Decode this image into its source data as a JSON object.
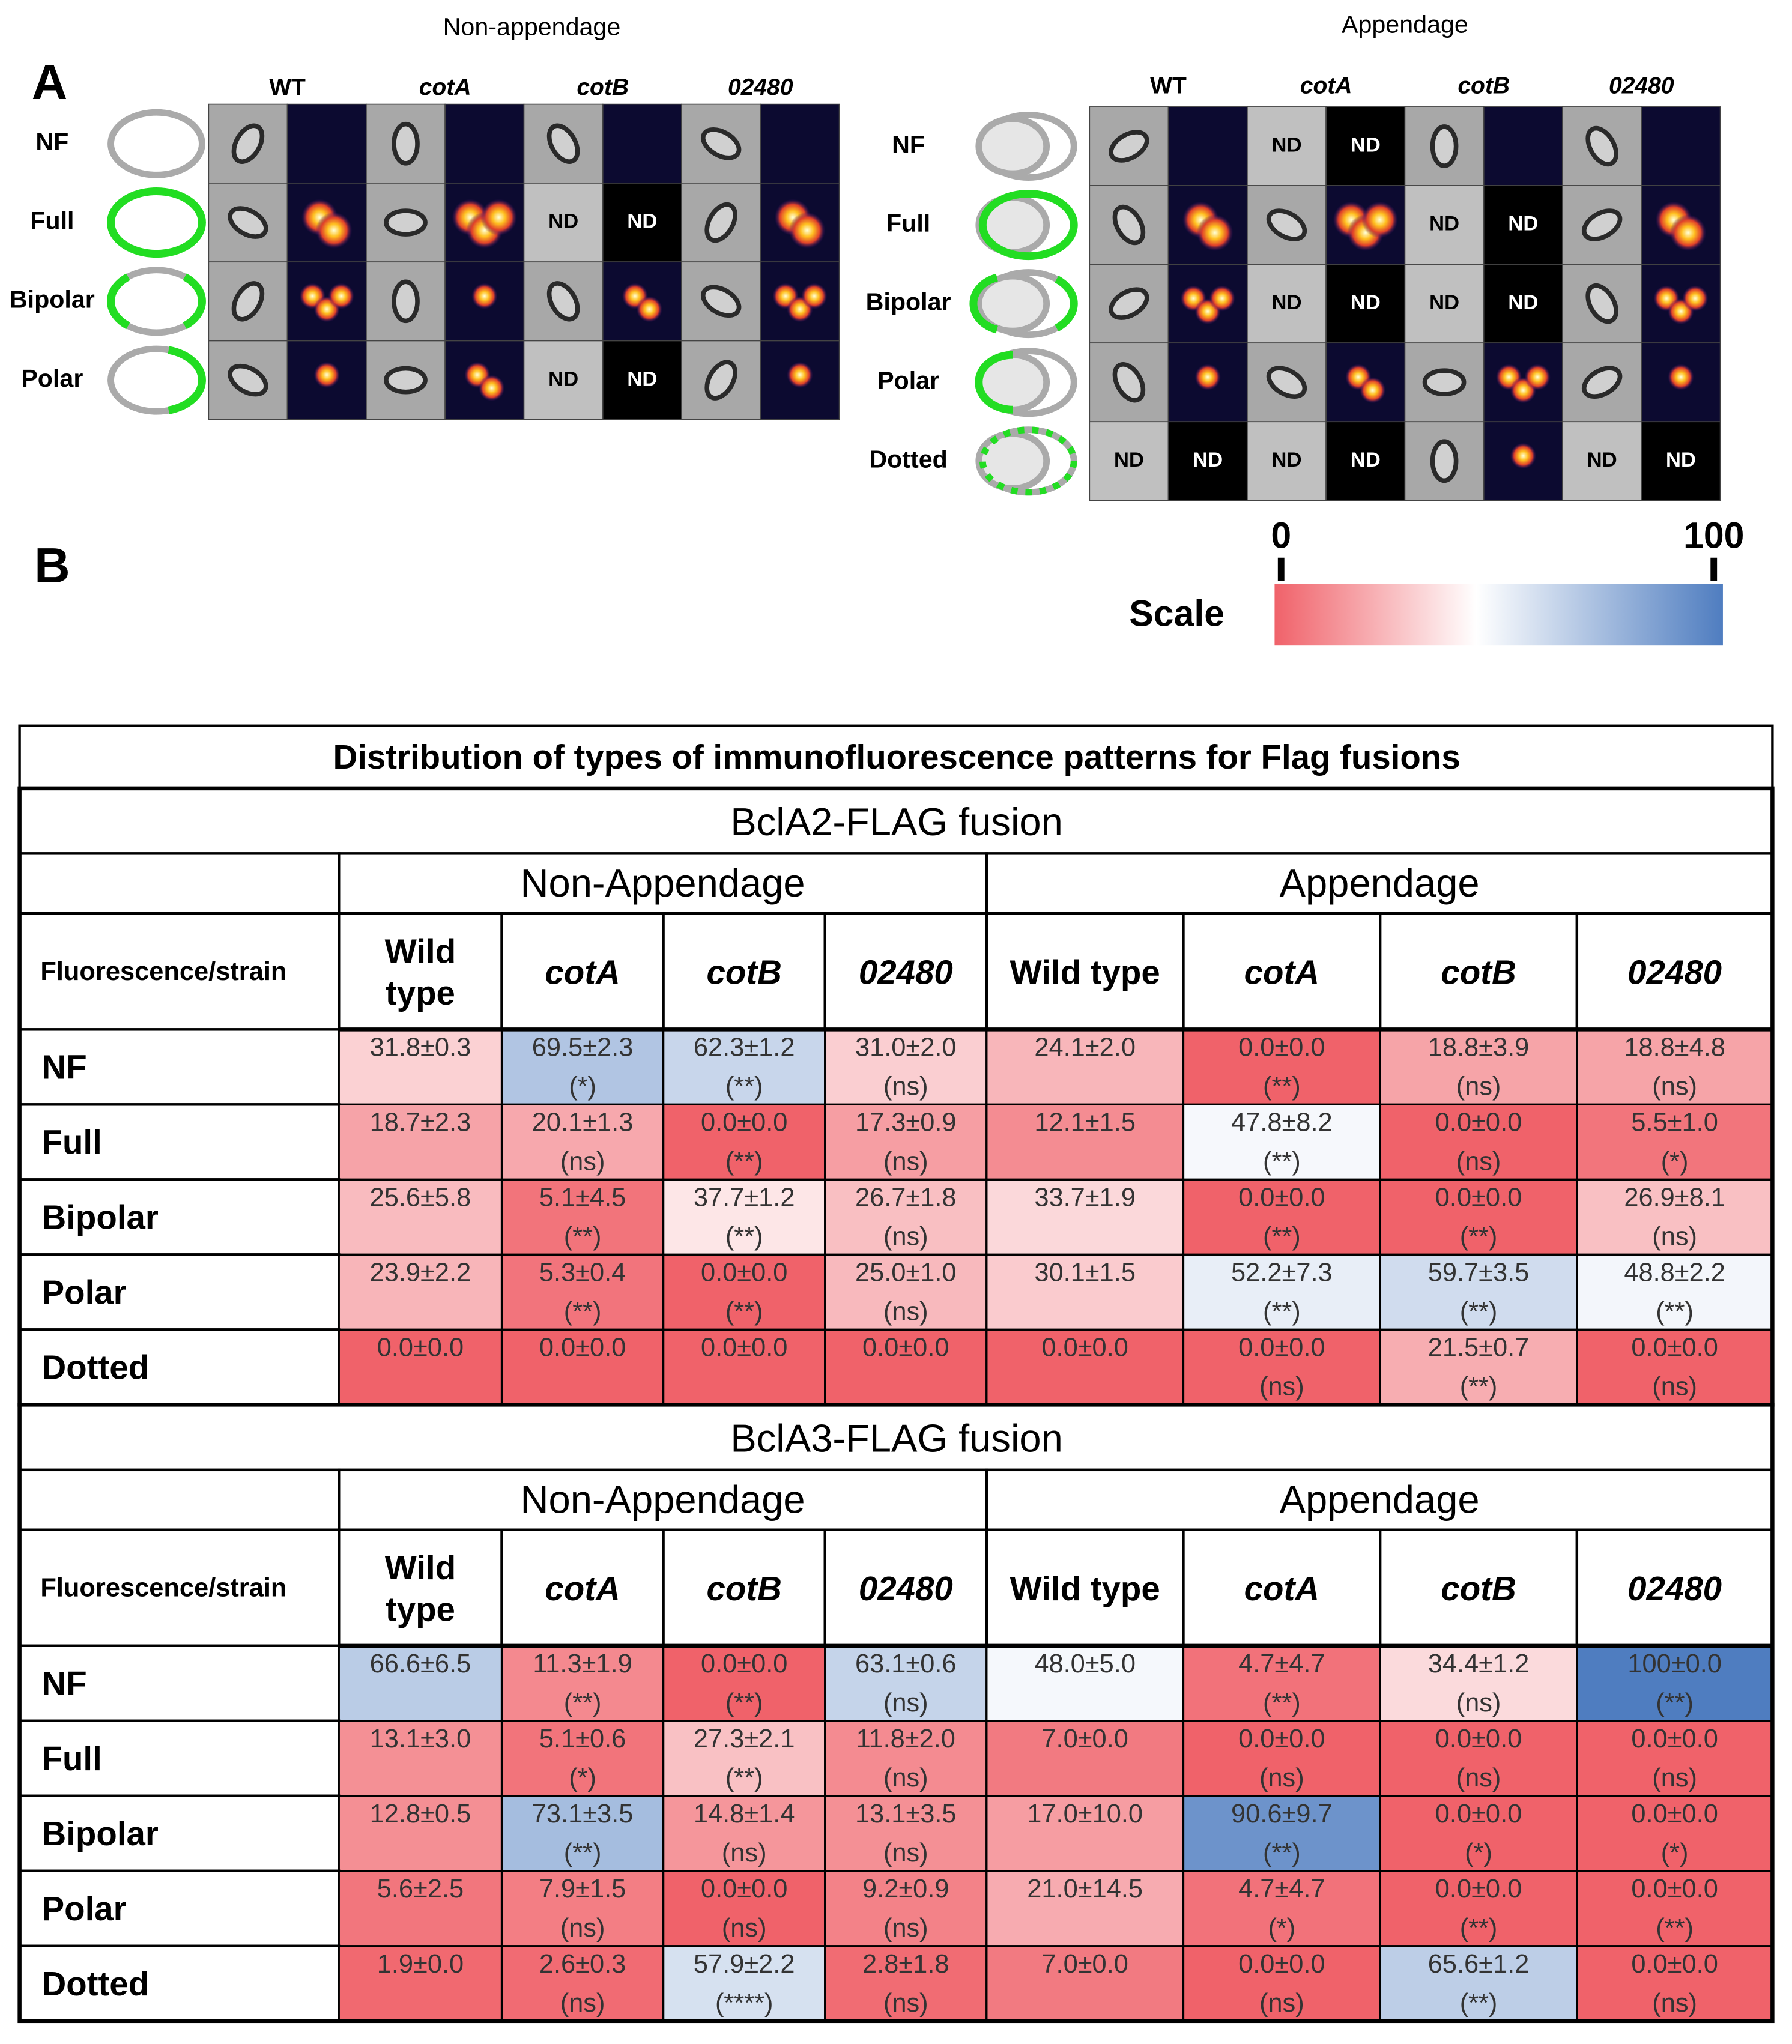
{
  "panel_a": {
    "label": "A",
    "groups": [
      {
        "title": "Non-appendage",
        "columns": [
          "WT",
          "cotA",
          "cotB",
          "02480"
        ],
        "rows": [
          "NF",
          "Full",
          "Bipolar",
          "Polar"
        ],
        "cells": [
          [
            null,
            null,
            null,
            null
          ],
          [
            null,
            null,
            "ND",
            null
          ],
          [
            null,
            null,
            null,
            null
          ],
          [
            null,
            null,
            "ND",
            null
          ]
        ]
      },
      {
        "title": "Appendage",
        "columns": [
          "WT",
          "cotA",
          "cotB",
          "02480"
        ],
        "rows": [
          "NF",
          "Full",
          "Bipolar",
          "Polar",
          "Dotted"
        ],
        "cells": [
          [
            null,
            "ND",
            null,
            null
          ],
          [
            null,
            null,
            "ND",
            null
          ],
          [
            null,
            "ND",
            "ND",
            null
          ],
          [
            null,
            null,
            null,
            null
          ],
          [
            "ND",
            "ND",
            null,
            "ND"
          ]
        ]
      }
    ]
  },
  "panel_b": {
    "label": "B",
    "scale": {
      "title": "Scale",
      "ticks": [
        0,
        100
      ]
    },
    "table": {
      "title": "Distribution of types of immunofluorescence patterns for Flag fusions",
      "sections": [
        {
          "title": "BclA2-FLAG fusion",
          "groups": [
            "Non-Appendage",
            "Appendage"
          ],
          "corner": "Fluorescence/strain",
          "columns": [
            "Wild type",
            "cotA",
            "cotB",
            "02480",
            "Wild type",
            "cotA",
            "cotB",
            "02480"
          ],
          "rows": [
            {
              "label": "NF",
              "cells": [
                [
                  "31.8±0.3"
                ],
                [
                  "69.5±2.3",
                  "(*)"
                ],
                [
                  "62.3±1.2",
                  "(**)"
                ],
                [
                  "31.0±2.0",
                  "(ns)"
                ],
                [
                  "24.1±2.0"
                ],
                [
                  "0.0±0.0",
                  "(**)"
                ],
                [
                  "18.8±3.9",
                  "(ns)"
                ],
                [
                  "18.8±4.8",
                  "(ns)"
                ]
              ]
            },
            {
              "label": "Full",
              "cells": [
                [
                  "18.7±2.3"
                ],
                [
                  "20.1±1.3",
                  "(ns)"
                ],
                [
                  "0.0±0.0",
                  "(**)"
                ],
                [
                  "17.3±0.9",
                  "(ns)"
                ],
                [
                  "12.1±1.5"
                ],
                [
                  "47.8±8.2",
                  "(**)"
                ],
                [
                  "0.0±0.0",
                  "(ns)"
                ],
                [
                  "5.5±1.0",
                  "(*)"
                ]
              ]
            },
            {
              "label": "Bipolar",
              "cells": [
                [
                  "25.6±5.8"
                ],
                [
                  "5.1±4.5",
                  "(**)"
                ],
                [
                  "37.7±1.2",
                  "(**)"
                ],
                [
                  "26.7±1.8",
                  "(ns)"
                ],
                [
                  "33.7±1.9"
                ],
                [
                  "0.0±0.0",
                  "(**)"
                ],
                [
                  "0.0±0.0",
                  "(**)"
                ],
                [
                  "26.9±8.1",
                  "(ns)"
                ]
              ]
            },
            {
              "label": "Polar",
              "cells": [
                [
                  "23.9±2.2"
                ],
                [
                  "5.3±0.4",
                  "(**)"
                ],
                [
                  "0.0±0.0",
                  "(**)"
                ],
                [
                  "25.0±1.0",
                  "(ns)"
                ],
                [
                  "30.1±1.5"
                ],
                [
                  "52.2±7.3",
                  "(**)"
                ],
                [
                  "59.7±3.5",
                  "(**)"
                ],
                [
                  "48.8±2.2",
                  "(**)"
                ]
              ]
            },
            {
              "label": "Dotted",
              "cells": [
                [
                  "0.0±0.0"
                ],
                [
                  "0.0±0.0"
                ],
                [
                  "0.0±0.0"
                ],
                [
                  "0.0±0.0"
                ],
                [
                  "0.0±0.0"
                ],
                [
                  "0.0±0.0",
                  "(ns)"
                ],
                [
                  "21.5±0.7",
                  "(**)"
                ],
                [
                  "0.0±0.0",
                  "(ns)"
                ]
              ]
            }
          ]
        },
        {
          "title": "BclA3-FLAG fusion",
          "groups": [
            "Non-Appendage",
            "Appendage"
          ],
          "corner": "Fluorescence/strain",
          "columns": [
            "Wild type",
            "cotA",
            "cotB",
            "02480",
            "Wild type",
            "cotA",
            "cotB",
            "02480"
          ],
          "rows": [
            {
              "label": "NF",
              "cells": [
                [
                  "66.6±6.5"
                ],
                [
                  "11.3±1.9",
                  "(**)"
                ],
                [
                  "0.0±0.0",
                  "(**)"
                ],
                [
                  "63.1±0.6",
                  "(ns)"
                ],
                [
                  "48.0±5.0"
                ],
                [
                  "4.7±4.7",
                  "(**)"
                ],
                [
                  "34.4±1.2",
                  "(ns)"
                ],
                [
                  "100±0.0",
                  "(**)"
                ]
              ]
            },
            {
              "label": "Full",
              "cells": [
                [
                  "13.1±3.0"
                ],
                [
                  "5.1±0.6",
                  "(*)"
                ],
                [
                  "27.3±2.1",
                  "(**)"
                ],
                [
                  "11.8±2.0",
                  "(ns)"
                ],
                [
                  "7.0±0.0"
                ],
                [
                  "0.0±0.0",
                  "(ns)"
                ],
                [
                  "0.0±0.0",
                  "(ns)"
                ],
                [
                  "0.0±0.0",
                  "(ns)"
                ]
              ]
            },
            {
              "label": "Bipolar",
              "cells": [
                [
                  "12.8±0.5"
                ],
                [
                  "73.1±3.5",
                  "(**)"
                ],
                [
                  "14.8±1.4",
                  "(ns)"
                ],
                [
                  "13.1±3.5",
                  "(ns)"
                ],
                [
                  "17.0±10.0"
                ],
                [
                  "90.6±9.7",
                  "(**)"
                ],
                [
                  "0.0±0.0",
                  "(*)"
                ],
                [
                  "0.0±0.0",
                  "(*)"
                ]
              ]
            },
            {
              "label": "Polar",
              "cells": [
                [
                  "5.6±2.5"
                ],
                [
                  "7.9±1.5",
                  "(ns)"
                ],
                [
                  "0.0±0.0",
                  "(ns)"
                ],
                [
                  "9.2±0.9",
                  "(ns)"
                ],
                [
                  "21.0±14.5"
                ],
                [
                  "4.7±4.7",
                  "(*)"
                ],
                [
                  "0.0±0.0",
                  "(**)"
                ],
                [
                  "0.0±0.0",
                  "(**)"
                ]
              ]
            },
            {
              "label": "Dotted",
              "cells": [
                [
                  "1.9±0.0"
                ],
                [
                  "2.6±0.3",
                  "(ns)"
                ],
                [
                  "57.9±2.2",
                  "(****)"
                ],
                [
                  "2.8±1.8",
                  "(ns)"
                ],
                [
                  "7.0±0.0"
                ],
                [
                  "0.0±0.0",
                  "(ns)"
                ],
                [
                  "65.6±1.2",
                  "(**)"
                ],
                [
                  "0.0±0.0",
                  "(ns)"
                ]
              ]
            }
          ]
        }
      ]
    }
  }
}
